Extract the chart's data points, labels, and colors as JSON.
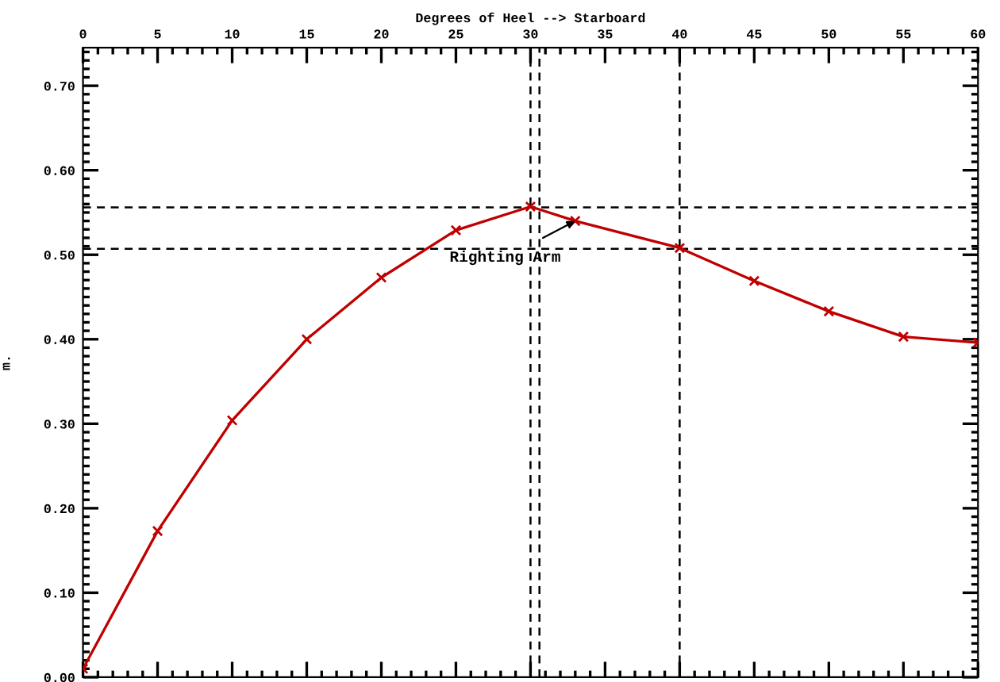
{
  "chart_data": {
    "type": "line",
    "xlabel": "Degrees of Heel --> Starboard",
    "ylabel": "m.",
    "x": [
      0,
      5,
      10,
      15,
      20,
      25,
      30,
      33,
      40,
      45,
      50,
      55,
      60
    ],
    "series": [
      {
        "color": "#c00000",
        "values": [
          0.01,
          0.173,
          0.304,
          0.4,
          0.473,
          0.529,
          0.557,
          0.54,
          0.508,
          0.469,
          0.433,
          0.403,
          0.396
        ]
      }
    ],
    "marker": "cross",
    "line_style": "solid",
    "xlim": [
      0,
      60
    ],
    "xticks": [
      0,
      5,
      10,
      15,
      20,
      25,
      30,
      35,
      40,
      45,
      50,
      55,
      60
    ],
    "ylim": [
      0,
      0.745
    ],
    "yticks": [
      {
        "value": 0,
        "label": "0.00"
      },
      {
        "value": 0.1,
        "label": "0.10"
      },
      {
        "value": 0.2,
        "label": "0.20"
      },
      {
        "value": 0.3,
        "label": "0.30"
      },
      {
        "value": 0.4,
        "label": "0.40"
      },
      {
        "value": 0.5,
        "label": "0.50"
      },
      {
        "value": 0.6,
        "label": "0.60"
      },
      {
        "value": 0.7,
        "label": "0.70"
      }
    ],
    "ref_lines": [
      {
        "axis": "y",
        "value": 0.556,
        "color": "#000000",
        "line_style": "dashed"
      },
      {
        "axis": "y",
        "value": 0.507,
        "color": "#000000",
        "line_style": "dashed"
      },
      {
        "axis": "x",
        "value": 30,
        "color": "#000000",
        "line_style": "dashed"
      },
      {
        "axis": "x",
        "value": 30.6,
        "color": "#000000",
        "line_style": "dashed"
      },
      {
        "axis": "x",
        "value": 40,
        "color": "#000000",
        "line_style": "dashed"
      }
    ],
    "annotations": [
      {
        "text": "Righting Arm",
        "x": 33,
        "y": 0.54
      }
    ],
    "grid": false,
    "legend": false
  }
}
